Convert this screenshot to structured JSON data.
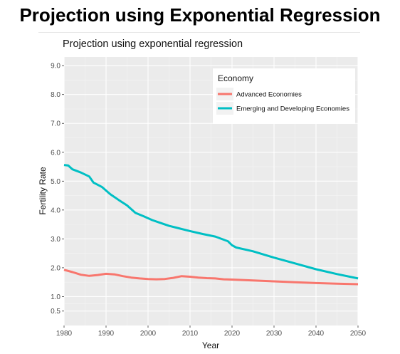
{
  "header": {
    "title": "Projection using Exponential Regression"
  },
  "chart_data": {
    "type": "line",
    "title": "Projection using exponential regression",
    "xlabel": "Year",
    "ylabel": "Fertility Rate",
    "xlim": [
      1980,
      2050
    ],
    "ylim": [
      0,
      9.3
    ],
    "x_ticks": [
      "1980",
      "1990",
      "2000",
      "2010",
      "2020",
      "2030",
      "2040",
      "2050"
    ],
    "y_ticks": [
      "0.5",
      "1.0",
      "2.0",
      "3.0",
      "4.0",
      "5.0",
      "6.0",
      "7.0",
      "8.0",
      "9.0"
    ],
    "grid": true,
    "legend": {
      "title": "Economy",
      "position": "top-right"
    },
    "series": [
      {
        "name": "Advanced Economies",
        "color": "#F8766D",
        "x": [
          1980,
          1982,
          1984,
          1986,
          1988,
          1990,
          1992,
          1994,
          1996,
          1998,
          2000,
          2002,
          2004,
          2006,
          2008,
          2010,
          2012,
          2014,
          2016,
          2018,
          2020,
          2025,
          2030,
          2035,
          2040,
          2045,
          2050
        ],
        "y": [
          1.93,
          1.85,
          1.76,
          1.72,
          1.75,
          1.79,
          1.77,
          1.71,
          1.66,
          1.63,
          1.61,
          1.6,
          1.61,
          1.65,
          1.71,
          1.69,
          1.66,
          1.64,
          1.63,
          1.6,
          1.59,
          1.56,
          1.53,
          1.5,
          1.47,
          1.45,
          1.43
        ]
      },
      {
        "name": "Emerging and Developing Economies",
        "color": "#00BFC4",
        "x": [
          1980,
          1981,
          1982,
          1984,
          1986,
          1987,
          1989,
          1991,
          1993,
          1995,
          1997,
          1999,
          2001,
          2003,
          2005,
          2007,
          2010,
          2013,
          2016,
          2019,
          2020,
          2021,
          2025,
          2030,
          2035,
          2040,
          2045,
          2050
        ],
        "y": [
          5.56,
          5.54,
          5.41,
          5.3,
          5.16,
          4.95,
          4.8,
          4.55,
          4.35,
          4.16,
          3.9,
          3.78,
          3.65,
          3.55,
          3.45,
          3.38,
          3.27,
          3.17,
          3.08,
          2.92,
          2.78,
          2.7,
          2.57,
          2.35,
          2.15,
          1.95,
          1.78,
          1.63
        ]
      }
    ]
  }
}
